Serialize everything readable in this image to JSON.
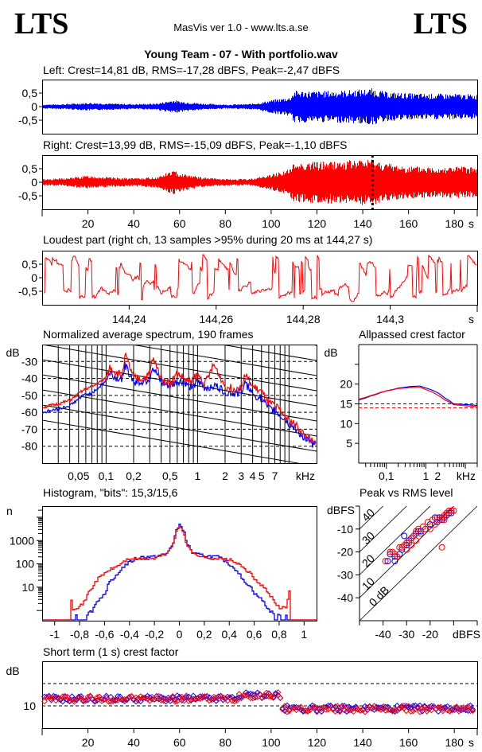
{
  "header": {
    "logo_left": "LTS",
    "logo_right": "LTS",
    "app_title": "MasVis ver 1.0 - www.lts.a.se",
    "file_title": "Young Team - 07 - With portfolio.wav"
  },
  "colors": {
    "left": "#0000ff",
    "right": "#ff0000",
    "axis": "#000000"
  },
  "chart_data": [
    {
      "id": "waveform-left",
      "type": "area",
      "title": "Left: Crest=14,81 dB, RMS=-17,28 dBFS, Peak=-2,47 dBFS",
      "series": [
        {
          "name": "Left",
          "color": "#0000ff"
        }
      ],
      "ylim": [
        -1,
        1
      ],
      "xlim": [
        0,
        190
      ],
      "yticks": [
        0.5,
        0,
        -0.5
      ],
      "ytick_labels": [
        "0,5",
        "0",
        "-0,5"
      ],
      "envelope_x": [
        0,
        10,
        20,
        30,
        40,
        50,
        57,
        60,
        70,
        80,
        90,
        95,
        100,
        104,
        108,
        110,
        120,
        130,
        140,
        144,
        150,
        160,
        170,
        180,
        190
      ],
      "envelope_peak": [
        0.08,
        0.1,
        0.15,
        0.12,
        0.1,
        0.12,
        0.25,
        0.2,
        0.12,
        0.08,
        0.1,
        0.15,
        0.25,
        0.3,
        0.35,
        0.6,
        0.58,
        0.6,
        0.65,
        0.68,
        0.55,
        0.5,
        0.48,
        0.48,
        0.45
      ]
    },
    {
      "id": "waveform-right",
      "type": "area",
      "title": "Right: Crest=13,99 dB, RMS=-15,09 dBFS, Peak=-1,10 dBFS",
      "series": [
        {
          "name": "Right",
          "color": "#ff0000"
        }
      ],
      "ylim": [
        -1,
        1
      ],
      "xlim": [
        0,
        190
      ],
      "yticks": [
        0.5,
        0,
        -0.5
      ],
      "ytick_labels": [
        "0,5",
        "0",
        "-0,5"
      ],
      "xticks": [
        20,
        40,
        60,
        80,
        100,
        120,
        140,
        160,
        180
      ],
      "xtick_labels": [
        "20",
        "40",
        "60",
        "80",
        "100",
        "120",
        "140",
        "160",
        "180"
      ],
      "xunit": "s",
      "marker_x": 144.27,
      "envelope_x": [
        0,
        10,
        20,
        30,
        40,
        50,
        57,
        60,
        70,
        80,
        90,
        95,
        100,
        104,
        108,
        110,
        120,
        130,
        140,
        144,
        150,
        160,
        170,
        180,
        190
      ],
      "envelope_peak": [
        0.12,
        0.15,
        0.25,
        0.18,
        0.15,
        0.2,
        0.45,
        0.35,
        0.18,
        0.12,
        0.12,
        0.2,
        0.3,
        0.4,
        0.5,
        0.75,
        0.78,
        0.8,
        0.85,
        0.88,
        0.72,
        0.6,
        0.58,
        0.6,
        0.55
      ]
    },
    {
      "id": "loudest-part",
      "type": "line",
      "title": "Loudest part (right ch, 13 samples >95% during 20 ms at 144,27 s)",
      "series": [
        {
          "name": "Right",
          "color": "#ff0000"
        }
      ],
      "ylim": [
        -1,
        1
      ],
      "xlim": [
        144.22,
        144.32
      ],
      "yticks": [
        0.5,
        0,
        -0.5
      ],
      "ytick_labels": [
        "0,5",
        "0",
        "-0,5"
      ],
      "xticks": [
        144.24,
        144.26,
        144.28,
        144.3
      ],
      "xtick_labels": [
        "144,24",
        "144,26",
        "144,28",
        "144,3"
      ],
      "xunit": "s"
    },
    {
      "id": "spectrum",
      "type": "line",
      "title": "Normalized average spectrum, 190 frames",
      "ylabel": "dB",
      "xunit": "kHz",
      "xscale": "log",
      "xlim": [
        0.02,
        20
      ],
      "ylim": [
        -90,
        -20
      ],
      "yticks": [
        -30,
        -40,
        -50,
        -60,
        -70,
        -80
      ],
      "ytick_labels": [
        "-30",
        "-40",
        "-50",
        "-60",
        "-70",
        "-80"
      ],
      "xtick_labels_pos": [
        0.05,
        0.1,
        0.2,
        0.5,
        1,
        2,
        3,
        4,
        5,
        7
      ],
      "xtick_labels": [
        "0,05",
        "0,1",
        "0,2",
        "0,5",
        "1",
        "2",
        "3",
        "4",
        "5",
        "7"
      ],
      "freq_khz": [
        0.02,
        0.03,
        0.04,
        0.05,
        0.06,
        0.07,
        0.08,
        0.1,
        0.11,
        0.13,
        0.15,
        0.16,
        0.2,
        0.25,
        0.3,
        0.32,
        0.4,
        0.5,
        0.6,
        0.7,
        0.8,
        1.0,
        1.2,
        1.5,
        2.0,
        2.5,
        3.0,
        3.3,
        4.0,
        5.0,
        6.0,
        7.0,
        8.0,
        9.0,
        10.0,
        12.0,
        15.0,
        20.0
      ],
      "series": [
        {
          "name": "Left",
          "color": "#0000ff",
          "values": [
            -60,
            -58,
            -56,
            -52,
            -49,
            -49,
            -46,
            -41,
            -37,
            -40,
            -40,
            -32,
            -42,
            -42,
            -40,
            -33,
            -43,
            -45,
            -42,
            -42,
            -45,
            -42,
            -46,
            -44,
            -48,
            -49,
            -48,
            -43,
            -49,
            -52,
            -58,
            -59,
            -62,
            -64,
            -67,
            -70,
            -76,
            -80
          ]
        },
        {
          "name": "Right",
          "color": "#ff0000",
          "values": [
            -57,
            -55,
            -53,
            -49,
            -46,
            -45,
            -43,
            -40,
            -33,
            -37,
            -38,
            -26,
            -40,
            -40,
            -38,
            -28,
            -40,
            -43,
            -37,
            -40,
            -42,
            -38,
            -43,
            -32,
            -45,
            -46,
            -45,
            -38,
            -45,
            -48,
            -55,
            -56,
            -59,
            -62,
            -65,
            -68,
            -74,
            -80
          ]
        }
      ]
    },
    {
      "id": "allpassed-crest",
      "type": "line",
      "title": "Allpassed crest factor",
      "ylabel": "dB",
      "xunit": "kHz",
      "xscale": "log",
      "xlim": [
        0.02,
        20
      ],
      "ylim": [
        0,
        30
      ],
      "yticks": [
        20,
        15,
        10,
        5
      ],
      "ytick_labels": [
        "20",
        "15",
        "10",
        "5"
      ],
      "xtick_labels_pos": [
        0.1,
        1,
        2
      ],
      "xtick_labels": [
        "0,1",
        "1",
        "2"
      ],
      "freq_khz": [
        0.02,
        0.04,
        0.07,
        0.1,
        0.2,
        0.4,
        0.7,
        1.0,
        2.0,
        3.0,
        5.0,
        10.0,
        20.0
      ],
      "series": [
        {
          "name": "Left",
          "color": "#0000ff",
          "values": [
            16.0,
            17.0,
            17.8,
            18.3,
            19.0,
            19.4,
            19.5,
            19.0,
            17.8,
            16.5,
            15.0,
            14.8,
            14.6
          ],
          "reference": 15.0
        },
        {
          "name": "Right",
          "color": "#ff0000",
          "values": [
            16.2,
            17.1,
            17.9,
            18.3,
            18.9,
            19.1,
            19.2,
            18.6,
            17.2,
            16.0,
            14.8,
            14.5,
            14.3
          ],
          "reference": 14.0
        }
      ]
    },
    {
      "id": "histogram",
      "type": "line",
      "title": "Histogram, \"bits\": 15,3/15,6",
      "ylabel": "n",
      "yscale": "log",
      "ylim": [
        0.5,
        30000
      ],
      "xlim": [
        -1.1,
        1.1
      ],
      "yticks": [
        1000,
        100,
        10
      ],
      "ytick_labels": [
        "1000",
        "100",
        "10"
      ],
      "xticks": [
        -1,
        -0.8,
        -0.6,
        -0.4,
        -0.2,
        0,
        0.2,
        0.4,
        0.6,
        0.8,
        1
      ],
      "xtick_labels": [
        "-1",
        "-0,8",
        "-0,6",
        "-0,4",
        "-0,2",
        "0",
        "0,2",
        "0,4",
        "0,6",
        "0,8",
        "1"
      ],
      "x": [
        -0.88,
        -0.86,
        -0.8,
        -0.76,
        -0.7,
        -0.6,
        -0.5,
        -0.4,
        -0.3,
        -0.2,
        -0.1,
        -0.05,
        0,
        0.05,
        0.1,
        0.2,
        0.3,
        0.4,
        0.5,
        0.6,
        0.7,
        0.76,
        0.8,
        0.86,
        0.88
      ],
      "series": [
        {
          "name": "Left",
          "color": "#0000ff",
          "values": [
            0.6,
            0.6,
            0.6,
            0.6,
            1,
            5,
            35,
            120,
            200,
            200,
            280,
            800,
            5000,
            800,
            280,
            220,
            200,
            90,
            20,
            5,
            1.2,
            0.6,
            0.6,
            0.6,
            0.6
          ]
        },
        {
          "name": "Right",
          "color": "#ff0000",
          "values": [
            5,
            1.2,
            1.5,
            2.5,
            10,
            40,
            80,
            170,
            160,
            170,
            280,
            750,
            4200,
            750,
            280,
            180,
            170,
            150,
            70,
            20,
            6,
            2,
            1.2,
            1.5,
            8
          ]
        }
      ]
    },
    {
      "id": "peak-vs-rms",
      "type": "scatter",
      "title": "Peak vs RMS level",
      "xlabel": "dBFS",
      "ylabel": "dBFS",
      "xlim": [
        -50,
        0
      ],
      "ylim": [
        -50,
        0
      ],
      "xticks": [
        -40,
        -30,
        -20
      ],
      "xtick_labels": [
        "-40",
        "-30",
        "-20"
      ],
      "yticks": [
        -10,
        -20,
        -30,
        -40
      ],
      "ytick_labels": [
        "-10",
        "-20",
        "-30",
        "-40"
      ],
      "crest_lines_db": [
        0,
        10,
        20,
        30,
        40
      ],
      "crest_line_labels": [
        "0 dB",
        "10",
        "20",
        "30",
        "40"
      ],
      "series": [
        {
          "name": "Left",
          "color": "#0000ff",
          "points": [
            [
              -38,
              -24
            ],
            [
              -37,
              -21
            ],
            [
              -35,
              -24
            ],
            [
              -35,
              -22
            ],
            [
              -33,
              -21
            ],
            [
              -32,
              -19
            ],
            [
              -31,
              -13
            ],
            [
              -30,
              -17
            ],
            [
              -29,
              -15
            ],
            [
              -28,
              -14
            ],
            [
              -27,
              -13
            ],
            [
              -26,
              -12
            ],
            [
              -25,
              -11
            ],
            [
              -18,
              -5
            ],
            [
              -17,
              -7
            ],
            [
              -16,
              -5
            ],
            [
              -15,
              -6
            ],
            [
              -14,
              -5
            ],
            [
              -13,
              -4
            ],
            [
              -12,
              -3
            ],
            [
              -11,
              -3
            ],
            [
              -20,
              -8
            ],
            [
              -22,
              -10
            ],
            [
              -24,
              -11
            ]
          ]
        },
        {
          "name": "Right",
          "color": "#ff0000",
          "points": [
            [
              -39,
              -24
            ],
            [
              -37,
              -20
            ],
            [
              -36,
              -20
            ],
            [
              -34,
              -22
            ],
            [
              -33,
              -18
            ],
            [
              -32,
              -18
            ],
            [
              -31,
              -17
            ],
            [
              -30,
              -16
            ],
            [
              -29,
              -16
            ],
            [
              -28,
              -14
            ],
            [
              -27,
              -13
            ],
            [
              -26,
              -11
            ],
            [
              -25,
              -10
            ],
            [
              -24,
              -12
            ],
            [
              -23,
              -9
            ],
            [
              -22,
              -10
            ],
            [
              -21,
              -7
            ],
            [
              -20,
              -10
            ],
            [
              -18,
              -8
            ],
            [
              -16,
              -6
            ],
            [
              -15,
              -5
            ],
            [
              -14,
              -4
            ],
            [
              -13,
              -3
            ],
            [
              -12,
              -2
            ],
            [
              -11,
              -2
            ],
            [
              -10,
              -2
            ],
            [
              -15,
              -18
            ],
            [
              -19,
              -6
            ],
            [
              -17,
              -5
            ],
            [
              -14,
              -6
            ],
            [
              -26,
              -15
            ],
            [
              -28,
              -17
            ],
            [
              -30,
              -19
            ],
            [
              -35,
              -21
            ]
          ]
        }
      ]
    },
    {
      "id": "short-term-crest",
      "type": "scatter",
      "title": "Short term (1 s) crest factor",
      "ylabel": "dB",
      "xunit": "s",
      "xlim": [
        0,
        190
      ],
      "ylim": [
        5,
        20
      ],
      "yticks": [
        10
      ],
      "ytick_labels": [
        "10"
      ],
      "dashed_y": [
        10,
        15
      ],
      "xticks": [
        20,
        40,
        60,
        80,
        100,
        120,
        140,
        160,
        180
      ],
      "xtick_labels": [
        "20",
        "40",
        "60",
        "80",
        "100",
        "120",
        "140",
        "160",
        "180"
      ],
      "segments": [
        {
          "from_s": 0,
          "to_s": 105,
          "left_mean": 11.6,
          "right_mean": 11.6
        },
        {
          "from_s": 105,
          "to_s": 190,
          "left_mean": 9.4,
          "right_mean": 9.3
        }
      ]
    }
  ]
}
